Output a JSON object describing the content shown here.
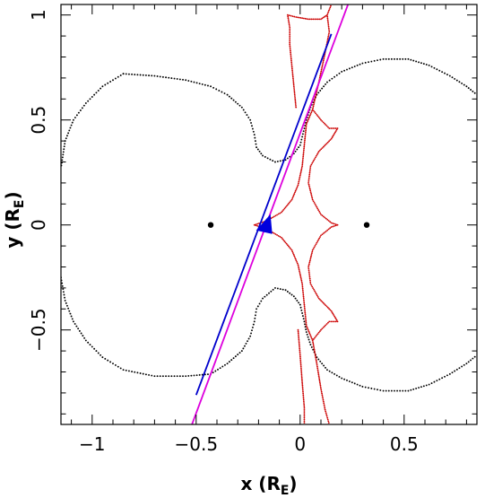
{
  "chart_data": {
    "type": "scatter",
    "xlabel": "x (R",
    "xlabel_sub": "E",
    "xlabel_close": ")",
    "ylabel": "y (R",
    "ylabel_sub": "E",
    "ylabel_close": ")",
    "xlim": [
      -1.15,
      0.85
    ],
    "ylim": [
      -0.95,
      1.05
    ],
    "grid": false,
    "x_ticks": [
      {
        "value": -1,
        "label": "−1"
      },
      {
        "value": -0.5,
        "label": "−0.5"
      },
      {
        "value": 0,
        "label": "0"
      },
      {
        "value": 0.5,
        "label": "0.5"
      }
    ],
    "y_ticks": [
      {
        "value": -0.5,
        "label": "−0.5"
      },
      {
        "value": 0,
        "label": "0"
      },
      {
        "value": 0.5,
        "label": "0.5"
      },
      {
        "value": 1,
        "label": "1"
      }
    ],
    "lenses": [
      {
        "x": -0.43,
        "y": 0.0
      },
      {
        "x": 0.32,
        "y": 0.0
      }
    ],
    "colors": {
      "critical_curve": "#000000",
      "caustic": "#cc0000",
      "source_track_magenta": "#dd00dd",
      "source_track_blue": "#0000cc",
      "source_marker": "#0000dd"
    },
    "critical_curves": [
      {
        "name": "",
        "points": [
          [
            -0.85,
            0.72
          ],
          [
            -0.7,
            0.71
          ],
          [
            -0.55,
            0.69
          ],
          [
            -0.43,
            0.66
          ],
          [
            -0.35,
            0.62
          ],
          [
            -0.28,
            0.56
          ],
          [
            -0.24,
            0.5
          ],
          [
            -0.22,
            0.43
          ],
          [
            -0.21,
            0.37
          ],
          [
            -0.18,
            0.33
          ],
          [
            -0.12,
            0.3
          ],
          [
            -0.07,
            0.31
          ],
          [
            -0.03,
            0.34
          ],
          [
            0.0,
            0.38
          ],
          [
            0.01,
            0.42
          ],
          [
            0.02,
            0.46
          ],
          [
            0.03,
            0.5
          ],
          [
            0.05,
            0.56
          ],
          [
            0.08,
            0.62
          ],
          [
            0.13,
            0.68
          ],
          [
            0.2,
            0.73
          ],
          [
            0.3,
            0.77
          ],
          [
            0.4,
            0.79
          ],
          [
            0.52,
            0.79
          ],
          [
            0.62,
            0.76
          ],
          [
            0.72,
            0.71
          ],
          [
            0.8,
            0.66
          ],
          [
            0.85,
            0.62
          ]
        ]
      },
      {
        "name": "",
        "points": [
          [
            -0.85,
            0.72
          ],
          [
            -0.95,
            0.66
          ],
          [
            -1.03,
            0.58
          ],
          [
            -1.09,
            0.5
          ],
          [
            -1.13,
            0.4
          ],
          [
            -1.15,
            0.27
          ]
        ]
      },
      {
        "name": "",
        "points": [
          [
            -1.15,
            -0.25
          ],
          [
            -1.13,
            -0.36
          ],
          [
            -1.09,
            -0.46
          ],
          [
            -1.03,
            -0.55
          ],
          [
            -0.95,
            -0.63
          ],
          [
            -0.85,
            -0.69
          ],
          [
            -0.7,
            -0.72
          ],
          [
            -0.55,
            -0.72
          ],
          [
            -0.43,
            -0.71
          ],
          [
            -0.35,
            -0.66
          ],
          [
            -0.28,
            -0.6
          ],
          [
            -0.24,
            -0.53
          ],
          [
            -0.22,
            -0.46
          ],
          [
            -0.21,
            -0.4
          ],
          [
            -0.18,
            -0.35
          ],
          [
            -0.12,
            -0.3
          ],
          [
            -0.07,
            -0.31
          ],
          [
            -0.03,
            -0.34
          ],
          [
            0.0,
            -0.38
          ],
          [
            0.01,
            -0.42
          ],
          [
            0.02,
            -0.46
          ],
          [
            0.03,
            -0.51
          ],
          [
            0.05,
            -0.57
          ],
          [
            0.08,
            -0.63
          ],
          [
            0.13,
            -0.69
          ],
          [
            0.2,
            -0.73
          ],
          [
            0.3,
            -0.77
          ],
          [
            0.4,
            -0.79
          ],
          [
            0.52,
            -0.79
          ],
          [
            0.62,
            -0.76
          ],
          [
            0.72,
            -0.71
          ],
          [
            0.8,
            -0.66
          ],
          [
            0.85,
            -0.62
          ]
        ]
      }
    ],
    "caustic": [
      {
        "name": "",
        "points": [
          [
            -0.22,
            0.0
          ],
          [
            -0.16,
            0.02
          ],
          [
            -0.09,
            0.06
          ],
          [
            -0.04,
            0.12
          ],
          [
            -0.01,
            0.19
          ],
          [
            0.01,
            0.28
          ],
          [
            0.02,
            0.38
          ],
          [
            0.03,
            0.48
          ],
          [
            0.06,
            0.55
          ],
          [
            0.1,
            0.5
          ],
          [
            0.14,
            0.46
          ],
          [
            0.18,
            0.46
          ],
          [
            0.15,
            0.41
          ],
          [
            0.09,
            0.35
          ],
          [
            0.05,
            0.28
          ],
          [
            0.04,
            0.2
          ],
          [
            0.06,
            0.12
          ],
          [
            0.1,
            0.05
          ],
          [
            0.15,
            0.01
          ],
          [
            0.18,
            0.0
          ],
          [
            0.15,
            -0.01
          ],
          [
            0.1,
            -0.05
          ],
          [
            0.06,
            -0.12
          ],
          [
            0.04,
            -0.2
          ],
          [
            0.05,
            -0.28
          ],
          [
            0.09,
            -0.35
          ],
          [
            0.15,
            -0.41
          ],
          [
            0.18,
            -0.46
          ],
          [
            0.14,
            -0.46
          ],
          [
            0.1,
            -0.5
          ],
          [
            0.06,
            -0.55
          ],
          [
            0.03,
            -0.48
          ],
          [
            0.02,
            -0.38
          ],
          [
            0.01,
            -0.28
          ],
          [
            -0.01,
            -0.19
          ],
          [
            -0.04,
            -0.12
          ],
          [
            -0.09,
            -0.06
          ],
          [
            -0.16,
            -0.02
          ],
          [
            -0.22,
            0.0
          ]
        ]
      },
      {
        "name": "",
        "points": [
          [
            -0.02,
            0.56
          ],
          [
            -0.03,
            0.66
          ],
          [
            -0.04,
            0.76
          ],
          [
            -0.05,
            0.86
          ],
          [
            -0.05,
            0.94
          ],
          [
            -0.06,
            1.0
          ],
          [
            -0.02,
            0.99
          ],
          [
            0.04,
            0.98
          ],
          [
            0.1,
            0.98
          ],
          [
            0.13,
            1.0
          ],
          [
            0.15,
            1.05
          ]
        ]
      },
      {
        "name": "",
        "points": [
          [
            0.06,
            0.55
          ],
          [
            0.09,
            0.68
          ],
          [
            0.12,
            0.82
          ],
          [
            0.14,
            0.92
          ],
          [
            0.13,
            1.0
          ]
        ]
      },
      {
        "name": "",
        "points": [
          [
            -0.01,
            -0.5
          ],
          [
            0.0,
            -0.62
          ],
          [
            0.01,
            -0.75
          ],
          [
            0.02,
            -0.87
          ],
          [
            0.02,
            -0.95
          ]
        ]
      },
      {
        "name": "",
        "points": [
          [
            0.06,
            -0.55
          ],
          [
            0.08,
            -0.66
          ],
          [
            0.1,
            -0.78
          ],
          [
            0.12,
            -0.88
          ],
          [
            0.14,
            -0.95
          ]
        ]
      }
    ],
    "source_tracks": [
      {
        "name": "",
        "color": "magenta",
        "points": [
          [
            -0.52,
            -0.95
          ],
          [
            0.23,
            1.05
          ]
        ]
      },
      {
        "name": "",
        "color": "blue",
        "points": [
          [
            -0.5,
            -0.81
          ],
          [
            0.15,
            0.91
          ]
        ]
      }
    ],
    "source_marker": {
      "x": -0.16,
      "y": 0.0
    }
  }
}
